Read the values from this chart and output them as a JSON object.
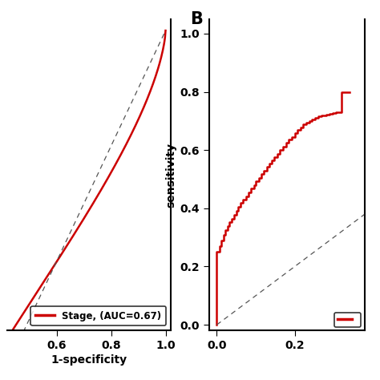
{
  "panel_A": {
    "xlabel": "1-specificity",
    "ylabel": "",
    "xlim": [
      0.42,
      1.02
    ],
    "ylim": [
      0.48,
      1.02
    ],
    "xticks": [
      0.6,
      0.8,
      1.0
    ],
    "yticks": [],
    "legend_label": "Stage, (AUC=0.67)",
    "roc_color": "#cc0000",
    "diag_color": "#555555",
    "linewidth": 1.8
  },
  "panel_B": {
    "label": "B",
    "xlabel": "",
    "ylabel": "sensitivity",
    "xlim": [
      -0.02,
      0.38
    ],
    "ylim": [
      -0.02,
      1.05
    ],
    "xticks": [
      0.0,
      0.2
    ],
    "yticks": [
      0.0,
      0.2,
      0.4,
      0.6,
      0.8,
      1.0
    ],
    "legend_label": "",
    "roc_color": "#cc0000",
    "diag_color": "#555555",
    "linewidth": 1.8
  },
  "background_color": "#ffffff",
  "text_color": "#000000"
}
